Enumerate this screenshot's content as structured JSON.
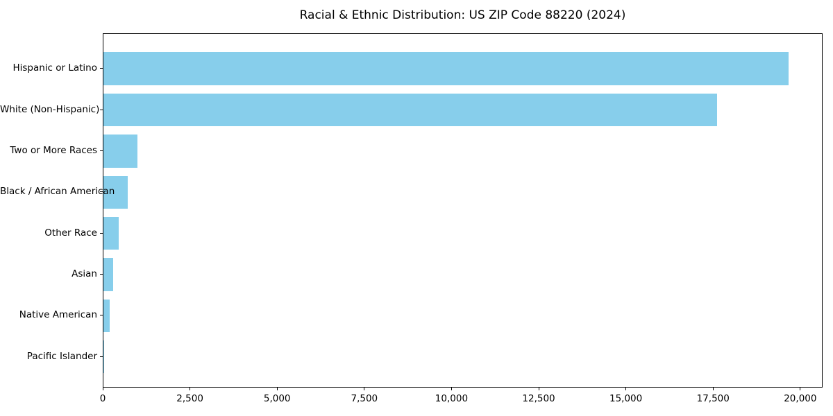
{
  "chart_data": {
    "type": "bar",
    "orientation": "horizontal",
    "title": "Racial & Ethnic Distribution: US ZIP Code 88220 (2024)",
    "categories": [
      "Hispanic or Latino",
      "White (Non-Hispanic)",
      "Two or More Races",
      "Black / African American",
      "Other Race",
      "Asian",
      "Native American",
      "Pacific Islander"
    ],
    "values": [
      19650,
      17600,
      975,
      690,
      430,
      270,
      170,
      10
    ],
    "xlabel": "",
    "ylabel": "",
    "xlim": [
      0,
      20640
    ],
    "xticks": [
      0,
      2500,
      5000,
      7500,
      10000,
      12500,
      15000,
      17500,
      20000
    ],
    "xtick_labels": [
      "0",
      "2,500",
      "5,000",
      "7,500",
      "10,000",
      "12,500",
      "15,000",
      "17,500",
      "20,000"
    ],
    "bar_color": "#87CEEB",
    "axis_color": "#000000",
    "text_color": "#000000",
    "background_color": "#ffffff",
    "grid": false,
    "legend": false
  }
}
